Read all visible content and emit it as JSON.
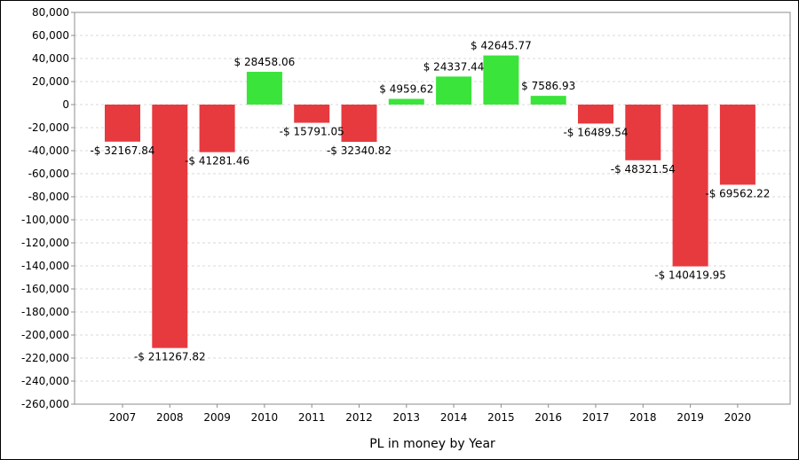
{
  "colors": {
    "positive": "#3ae43a",
    "negative": "#e73a3f",
    "grid": "#d9d9d9",
    "axis": "#8c8c8c"
  },
  "chart_data": {
    "type": "bar",
    "title": "",
    "xlabel": "PL in money by Year",
    "ylabel": "",
    "ylim": [
      -260000,
      80000
    ],
    "ytick_step": 20000,
    "grid": true,
    "legend": "none",
    "categories": [
      "2007",
      "2008",
      "2009",
      "2010",
      "2011",
      "2012",
      "2013",
      "2014",
      "2015",
      "2016",
      "2017",
      "2018",
      "2019",
      "2020"
    ],
    "values": [
      -32167.84,
      -211267.82,
      -41281.46,
      28458.06,
      -15791.05,
      -32340.82,
      4959.62,
      24337.44,
      42645.77,
      7586.93,
      -16489.54,
      -48321.54,
      -140419.95,
      -69562.22
    ],
    "data_labels": [
      "-$ 32167.84",
      "-$ 211267.82",
      "-$ 41281.46",
      "$ 28458.06",
      "-$ 15791.05",
      "-$ 32340.82",
      "$ 4959.62",
      "$ 24337.44",
      "$ 42645.77",
      "$ 7586.93",
      "-$ 16489.54",
      "-$ 48321.54",
      "-$ 140419.95",
      "-$ 69562.22"
    ]
  }
}
